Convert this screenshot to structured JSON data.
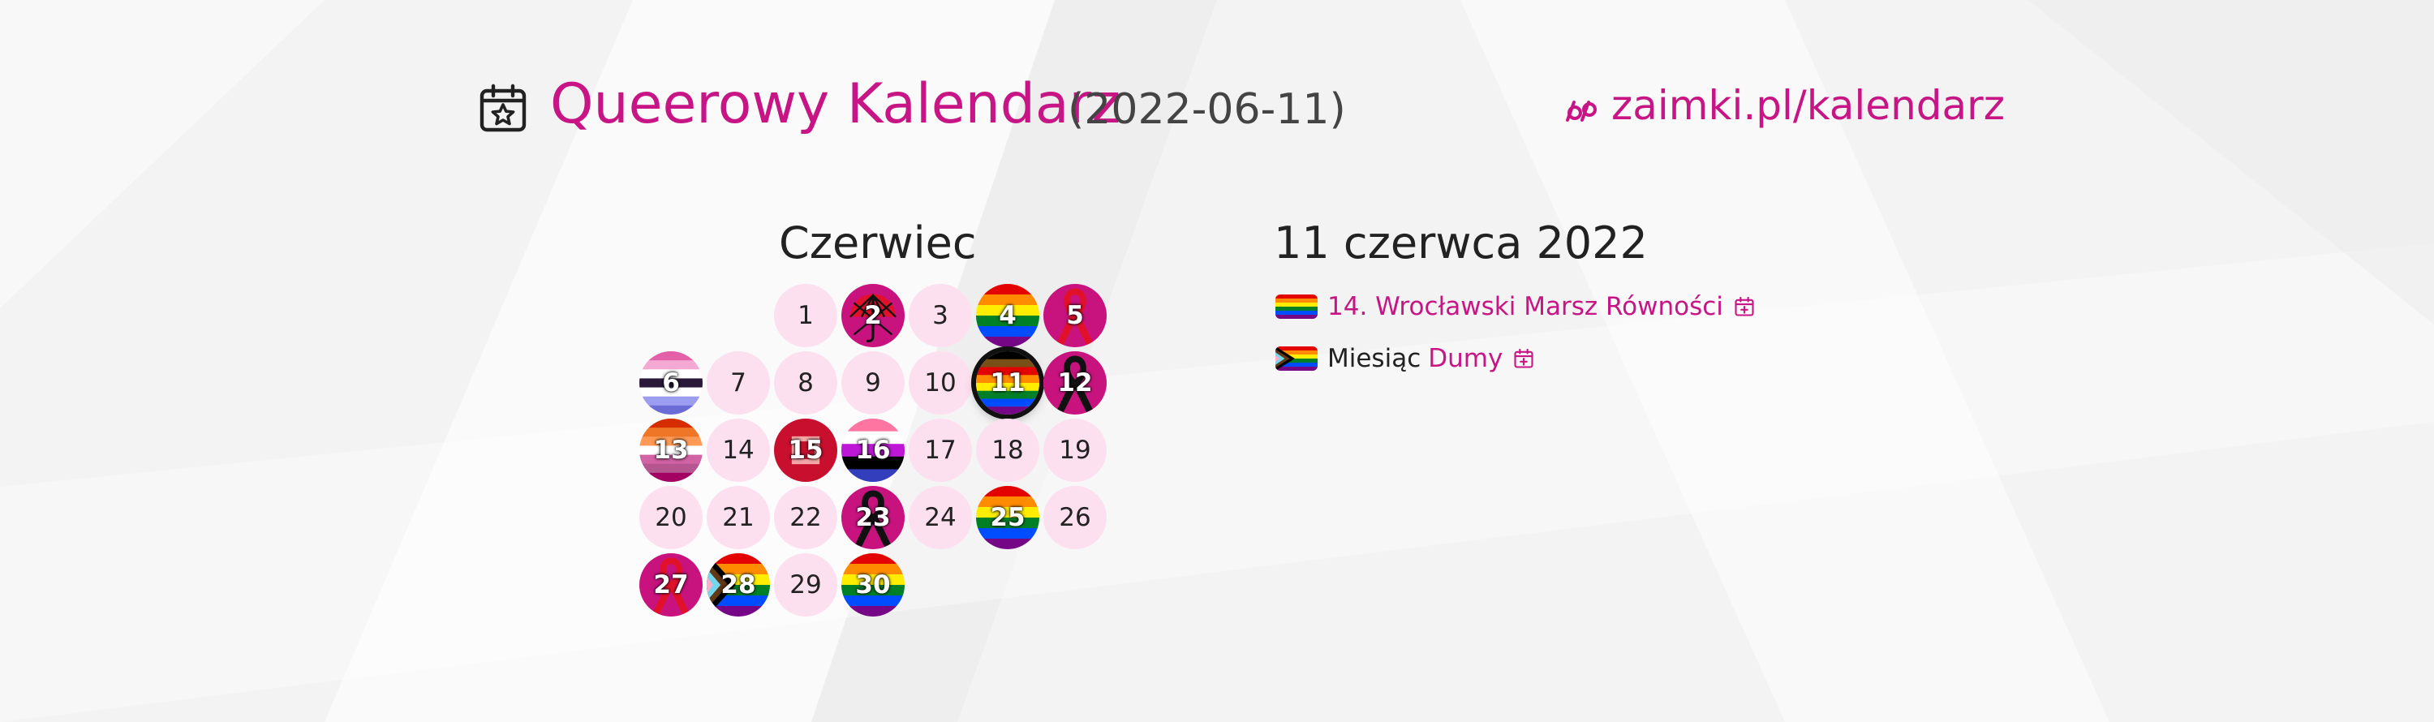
{
  "header": {
    "title": "Queerowy Kalendarz",
    "date_paren": "(2022-06-11)",
    "site_link": "zaimki.pl/kalendarz",
    "icon": "calendar-star-icon",
    "logo_icon": "zaimki-logo-icon",
    "accent_color": "#c71585"
  },
  "calendar": {
    "month_name": "Czerwiec",
    "first_weekday_index": 2,
    "today": "11",
    "days": [
      {
        "label": "1",
        "flag": ""
      },
      {
        "label": "2",
        "flag": "red-umbrella"
      },
      {
        "label": "3",
        "flag": ""
      },
      {
        "label": "4",
        "flag": "rainbow"
      },
      {
        "label": "5",
        "flag": "red-ribbon"
      },
      {
        "label": "6",
        "flag": "demiboy"
      },
      {
        "label": "7",
        "flag": ""
      },
      {
        "label": "8",
        "flag": ""
      },
      {
        "label": "9",
        "flag": ""
      },
      {
        "label": "10",
        "flag": ""
      },
      {
        "label": "11",
        "flag": "philly-rainbow"
      },
      {
        "label": "12",
        "flag": "black-ribbon"
      },
      {
        "label": "13",
        "flag": "lesbian"
      },
      {
        "label": "14",
        "flag": ""
      },
      {
        "label": "15",
        "flag": "red-square"
      },
      {
        "label": "16",
        "flag": "genderfluid"
      },
      {
        "label": "17",
        "flag": ""
      },
      {
        "label": "18",
        "flag": ""
      },
      {
        "label": "19",
        "flag": ""
      },
      {
        "label": "20",
        "flag": ""
      },
      {
        "label": "21",
        "flag": ""
      },
      {
        "label": "22",
        "flag": ""
      },
      {
        "label": "23",
        "flag": "black-ribbon"
      },
      {
        "label": "24",
        "flag": ""
      },
      {
        "label": "25",
        "flag": "rainbow"
      },
      {
        "label": "26",
        "flag": ""
      },
      {
        "label": "27",
        "flag": "red-ribbon"
      },
      {
        "label": "28",
        "flag": "progress"
      },
      {
        "label": "29",
        "flag": ""
      },
      {
        "label": "30",
        "flag": "rainbow"
      }
    ]
  },
  "selected_day": {
    "heading": "11 czerwca 2022",
    "events": [
      {
        "flag": "rainbow",
        "prefix": "",
        "link_text": "14. Wrocławski Marsz Równości",
        "action_icon": "calendar-add-icon"
      },
      {
        "flag": "progress",
        "prefix": "Miesiąc",
        "link_text": "Dumy",
        "action_icon": "calendar-add-icon"
      }
    ]
  }
}
